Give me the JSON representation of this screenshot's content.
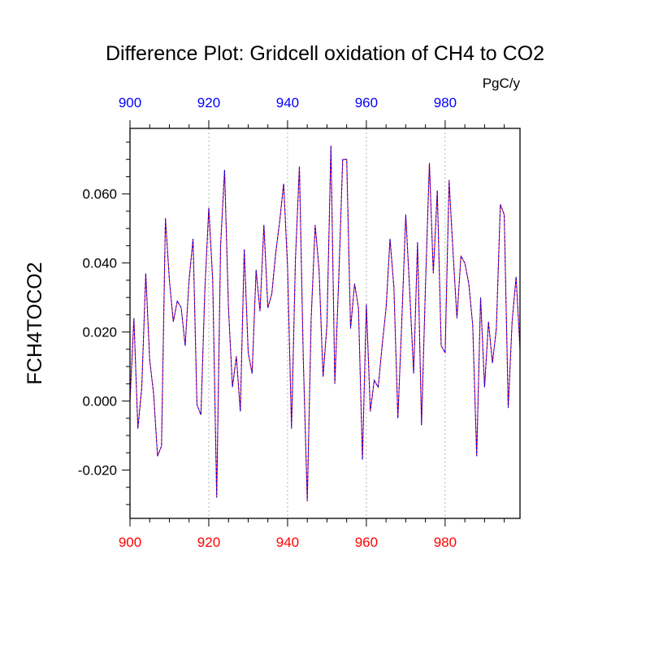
{
  "chart_data": {
    "type": "line",
    "title": "Difference Plot: Gridcell oxidation of CH4 to CO2",
    "units": "PgC/y",
    "ylabel": "FCH4TOCO2",
    "xlabel": "",
    "xlim": [
      900,
      999
    ],
    "ylim": [
      -0.034,
      0.079
    ],
    "xticks": [
      900,
      920,
      940,
      960,
      980
    ],
    "xtick_labels": [
      "900",
      "920",
      "940",
      "960",
      "980"
    ],
    "yticks": [
      -0.02,
      0.0,
      0.02,
      0.04,
      0.06
    ],
    "ytick_labels": [
      "-0.020",
      "0.000",
      "0.020",
      "0.040",
      "0.060"
    ],
    "bottom_axis_color": "#ff0000",
    "top_axis_color": "#0000ff",
    "grid": "vertical dotted at major x ticks",
    "x": [
      900,
      901,
      902,
      903,
      904,
      905,
      906,
      907,
      908,
      909,
      910,
      911,
      912,
      913,
      914,
      915,
      916,
      917,
      918,
      919,
      920,
      921,
      922,
      923,
      924,
      925,
      926,
      927,
      928,
      929,
      930,
      931,
      932,
      933,
      934,
      935,
      936,
      937,
      938,
      939,
      940,
      941,
      942,
      943,
      944,
      945,
      946,
      947,
      948,
      949,
      950,
      951,
      952,
      953,
      954,
      955,
      956,
      957,
      958,
      959,
      960,
      961,
      962,
      963,
      964,
      965,
      966,
      967,
      968,
      969,
      970,
      971,
      972,
      973,
      974,
      975,
      976,
      977,
      978,
      979,
      980,
      981,
      982,
      983,
      984,
      985,
      986,
      987,
      988,
      989,
      990,
      991,
      992,
      993,
      994,
      995,
      996,
      997,
      998,
      999
    ],
    "series": [
      {
        "name": "series-red",
        "color": "#ff0000",
        "values": [
          0.0,
          0.024,
          -0.008,
          0.004,
          0.037,
          0.012,
          0.002,
          -0.016,
          -0.013,
          0.053,
          0.035,
          0.023,
          0.029,
          0.027,
          0.016,
          0.035,
          0.047,
          -0.001,
          -0.004,
          0.032,
          0.056,
          0.035,
          -0.028,
          0.045,
          0.067,
          0.027,
          0.004,
          0.013,
          -0.003,
          0.044,
          0.014,
          0.008,
          0.038,
          0.026,
          0.051,
          0.027,
          0.031,
          0.043,
          0.052,
          0.063,
          0.039,
          -0.008,
          0.041,
          0.068,
          0.012,
          -0.029,
          0.024,
          0.051,
          0.038,
          0.007,
          0.022,
          0.074,
          0.005,
          0.036,
          0.07,
          0.07,
          0.021,
          0.034,
          0.027,
          -0.017,
          0.028,
          -0.003,
          0.006,
          0.004,
          0.016,
          0.027,
          0.047,
          0.033,
          -0.005,
          0.023,
          0.054,
          0.032,
          0.008,
          0.046,
          -0.007,
          0.033,
          0.069,
          0.037,
          0.061,
          0.016,
          0.014,
          0.064,
          0.043,
          0.024,
          0.042,
          0.04,
          0.034,
          0.022,
          -0.016,
          0.03,
          0.004,
          0.023,
          0.011,
          0.021,
          0.057,
          0.054,
          -0.002,
          0.023,
          0.036,
          0.015
        ]
      },
      {
        "name": "series-blue",
        "color": "#0000ff",
        "values": [
          0.0,
          0.024,
          -0.008,
          0.004,
          0.037,
          0.012,
          0.002,
          -0.016,
          -0.013,
          0.053,
          0.035,
          0.023,
          0.029,
          0.027,
          0.016,
          0.035,
          0.047,
          -0.001,
          -0.004,
          0.032,
          0.056,
          0.035,
          -0.028,
          0.045,
          0.067,
          0.027,
          0.004,
          0.013,
          -0.003,
          0.044,
          0.014,
          0.008,
          0.038,
          0.026,
          0.051,
          0.027,
          0.031,
          0.043,
          0.052,
          0.063,
          0.039,
          -0.008,
          0.041,
          0.068,
          0.012,
          -0.029,
          0.024,
          0.051,
          0.038,
          0.007,
          0.022,
          0.074,
          0.005,
          0.036,
          0.07,
          0.07,
          0.021,
          0.034,
          0.027,
          -0.017,
          0.028,
          -0.003,
          0.006,
          0.004,
          0.016,
          0.027,
          0.047,
          0.033,
          -0.005,
          0.023,
          0.054,
          0.032,
          0.008,
          0.046,
          -0.007,
          0.033,
          0.069,
          0.037,
          0.061,
          0.016,
          0.014,
          0.064,
          0.043,
          0.024,
          0.042,
          0.04,
          0.034,
          0.022,
          -0.016,
          0.03,
          0.004,
          0.023,
          0.011,
          0.021,
          0.057,
          0.054,
          -0.002,
          0.023,
          0.036,
          0.015
        ]
      }
    ]
  }
}
